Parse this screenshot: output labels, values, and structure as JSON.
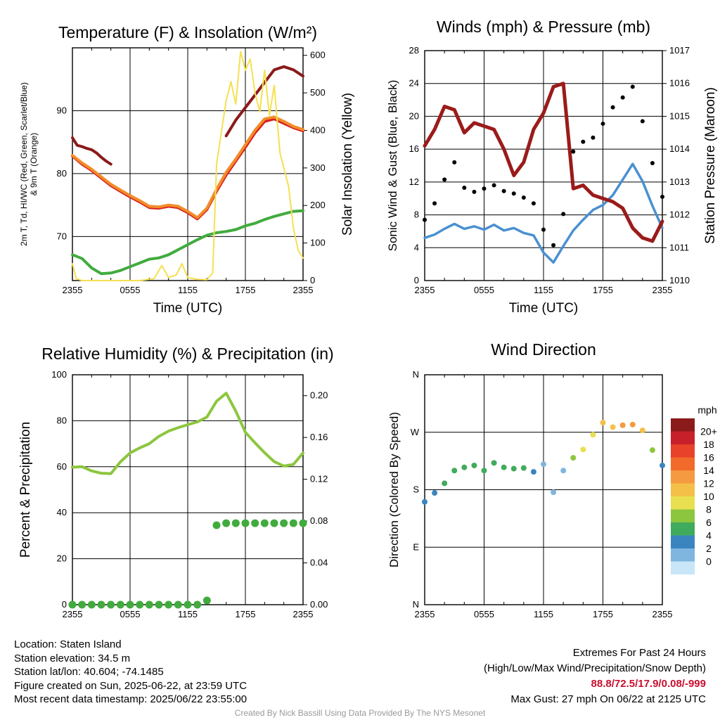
{
  "chart_data": [
    {
      "type": "line",
      "title": "Temperature (F) & Insolation (W/m²)",
      "xlabel": "Time (UTC)",
      "ylabel": "2m T, Td, HI/WC (Red, Green, Scarlet/Blue) & 9m T (Orange)",
      "ylabel2": "Solar Insolation (Yellow)",
      "x_ticks": [
        "2355",
        "0555",
        "1155",
        "1755",
        "2355"
      ],
      "ylim": [
        63,
        100
      ],
      "y_ticks": [
        70,
        80,
        90
      ],
      "y2lim": [
        0,
        620
      ],
      "y2_ticks": [
        0,
        100,
        200,
        300,
        400,
        500,
        600
      ],
      "grid": true,
      "x_hours": [
        0,
        1,
        2,
        3,
        4,
        5,
        6,
        7,
        8,
        9,
        10,
        11,
        12,
        13,
        14,
        15,
        16,
        17,
        18,
        19,
        20,
        21,
        22,
        23,
        24
      ],
      "series": [
        {
          "color": "#d62020",
          "values": [
            82.8,
            81.5,
            80.5,
            79.3,
            78.1,
            77.2,
            76.3,
            75.5,
            74.6,
            74.5,
            74.8,
            74.6,
            73.8,
            72.8,
            74.3,
            77.2,
            79.8,
            82.0,
            84.2,
            86.5,
            88.3,
            88.7,
            88.0,
            87.3,
            86.8
          ]
        },
        {
          "color": "#f28c28",
          "values": [
            82.9,
            81.7,
            80.7,
            79.5,
            78.3,
            77.4,
            76.5,
            75.7,
            74.8,
            74.7,
            75.0,
            74.8,
            74.0,
            73.0,
            74.5,
            77.5,
            80.2,
            82.3,
            84.6,
            86.9,
            88.7,
            89.0,
            88.3,
            87.5,
            87.0
          ]
        },
        {
          "color": "#41ab3d",
          "values": [
            67.1,
            66.5,
            65.0,
            64.1,
            64.2,
            64.6,
            65.2,
            65.8,
            66.4,
            66.6,
            67.1,
            67.9,
            68.7,
            69.5,
            70.2,
            70.6,
            70.8,
            71.1,
            71.7,
            72.1,
            72.7,
            73.2,
            73.6,
            74.0,
            74.1
          ]
        },
        {
          "color": "#8b1a1a",
          "hours": [
            0,
            0.5,
            1,
            1.5,
            2,
            2.5,
            3,
            3.5,
            4
          ],
          "values": [
            85.7,
            84.5,
            84.3,
            84.0,
            83.8,
            83.3,
            82.6,
            82.0,
            81.5
          ]
        },
        {
          "color": "#8b1a1a",
          "hours": [
            16,
            17,
            18,
            19,
            20,
            21,
            22,
            23,
            24
          ],
          "values": [
            86.0,
            88.5,
            90.5,
            92.5,
            94.5,
            96.5,
            97.0,
            96.5,
            95.5
          ]
        },
        {
          "color": "#f5e050",
          "axis": "right",
          "hours": [
            0,
            0.4,
            1,
            7,
            8.5,
            9.3,
            10,
            10.8,
            11.4,
            12,
            13,
            14,
            14.6,
            15,
            16,
            16.5,
            17,
            17.5,
            18,
            18.5,
            19,
            19.5,
            20,
            20.5,
            21,
            21.6,
            22,
            22.5,
            23,
            23.5,
            24
          ],
          "values": [
            45,
            5,
            0,
            0,
            5,
            40,
            8,
            15,
            45,
            8,
            3,
            2,
            20,
            310,
            480,
            530,
            470,
            610,
            560,
            590,
            500,
            450,
            560,
            440,
            520,
            340,
            300,
            250,
            140,
            80,
            60
          ]
        }
      ]
    },
    {
      "type": "line",
      "title": "Winds (mph) & Pressure (mb)",
      "xlabel": "Time (UTC)",
      "ylabel": "Sonic Wind & Gust (Blue, Black)",
      "ylabel2": "Station Pressure (Maroon)",
      "x_ticks": [
        "2355",
        "0555",
        "1155",
        "1755",
        "2355"
      ],
      "ylim": [
        0,
        28
      ],
      "y_ticks": [
        0,
        4,
        8,
        12,
        16,
        20,
        24,
        28
      ],
      "y2lim": [
        1010,
        1017
      ],
      "y2_ticks": [
        1010,
        1011,
        1012,
        1013,
        1014,
        1015,
        1016,
        1017
      ],
      "grid": true,
      "x_hours": [
        0,
        1,
        2,
        3,
        4,
        5,
        6,
        7,
        8,
        9,
        10,
        11,
        12,
        13,
        14,
        15,
        16,
        17,
        18,
        19,
        20,
        21,
        22,
        23,
        24
      ],
      "series": [
        {
          "color": "#4a90d0",
          "values": [
            5.2,
            5.6,
            6.3,
            6.9,
            6.3,
            6.6,
            6.2,
            6.8,
            6.1,
            6.4,
            5.8,
            5.5,
            3.4,
            2.2,
            4.2,
            6.1,
            7.4,
            8.6,
            9.2,
            10.4,
            12.3,
            14.2,
            12.1,
            9.1,
            6.4
          ]
        },
        {
          "color": "#000000",
          "type": "scatter",
          "values": [
            7.4,
            9.4,
            12.3,
            14.4,
            11.3,
            10.8,
            11.2,
            11.6,
            10.9,
            10.6,
            10.1,
            9.4,
            6.2,
            4.3,
            8.1,
            15.7,
            16.9,
            17.4,
            19.1,
            21.1,
            22.3,
            23.6,
            19.4,
            14.3,
            10.2
          ]
        },
        {
          "color": "#9b1b1b",
          "axis": "right",
          "values": [
            1014.1,
            1014.6,
            1015.3,
            1015.2,
            1014.5,
            1014.8,
            1014.7,
            1014.6,
            1014.0,
            1013.2,
            1013.6,
            1014.6,
            1015.1,
            1015.9,
            1016.0,
            1012.8,
            1012.9,
            1012.6,
            1012.5,
            1012.4,
            1012.2,
            1011.6,
            1011.3,
            1011.2,
            1011.8
          ]
        }
      ]
    },
    {
      "type": "line",
      "title": "Relative Humidity (%) & Precipitation (in)",
      "ylabel": "Percent & Precipitation",
      "x_ticks": [
        "2355",
        "0555",
        "1155",
        "1755",
        "2355"
      ],
      "ylim": [
        0,
        100
      ],
      "y_ticks": [
        0,
        20,
        40,
        60,
        80,
        100
      ],
      "y2lim": [
        0,
        0.22
      ],
      "y2_ticks": [
        "0.00",
        "0.04",
        "0.08",
        "0.12",
        "0.16",
        "0.20"
      ],
      "grid": true,
      "x_hours": [
        0,
        1,
        2,
        3,
        4,
        5,
        6,
        7,
        8,
        9,
        10,
        11,
        12,
        13,
        14,
        15,
        16,
        17,
        18,
        19,
        20,
        21,
        22,
        23,
        24
      ],
      "series": [
        {
          "color": "#8dc63f",
          "values": [
            59.8,
            60.0,
            58.2,
            57.2,
            57.0,
            62.1,
            66.0,
            68.2,
            70.0,
            73.2,
            75.5,
            77.0,
            78.3,
            79.5,
            81.6,
            88.5,
            92.0,
            84.2,
            75.0,
            70.4,
            66.1,
            62.2,
            60.3,
            61.0,
            66.0
          ]
        },
        {
          "color": "#41ab3d",
          "type": "scatter",
          "values": [
            0,
            0,
            0,
            0,
            0,
            0,
            0,
            0,
            0,
            0,
            0,
            0,
            0,
            0,
            0.004,
            0.076,
            0.078,
            0.078,
            0.078,
            0.078,
            0.078,
            0.078,
            0.078,
            0.078,
            0.078
          ]
        }
      ]
    },
    {
      "type": "scatter",
      "title": "Wind Direction",
      "ylabel": "Direction (Colored By Speed)",
      "x_ticks": [
        "2355",
        "0555",
        "1155",
        "1755",
        "2355"
      ],
      "ylim": [
        0,
        360
      ],
      "y_ticks": [
        "N",
        "E",
        "S",
        "W",
        "N"
      ],
      "grid": true,
      "legend_title": "mph",
      "legend": [
        "20+",
        "18",
        "16",
        "14",
        "12",
        "10",
        "8",
        "6",
        "4",
        "2",
        "0"
      ],
      "legend_colors": [
        "#8b1a1a",
        "#c8202a",
        "#e8422a",
        "#f26a2a",
        "#f59a40",
        "#f5c048",
        "#e8e050",
        "#8cc63f",
        "#41ab5d",
        "#3a85c0",
        "#7fb6e0",
        "#c8e6f8"
      ],
      "x_hours": [
        0,
        1,
        2,
        3,
        4,
        5,
        6,
        7,
        8,
        9,
        10,
        11,
        12,
        13,
        14,
        15,
        16,
        17,
        18,
        19,
        20,
        21,
        22,
        23,
        24
      ],
      "values": [
        161,
        175,
        190,
        210,
        215,
        218,
        210,
        222,
        215,
        213,
        214,
        208,
        220,
        176,
        210,
        230,
        243,
        266,
        285,
        278,
        281,
        282,
        273,
        242,
        218
      ],
      "speeds": [
        4,
        5,
        6,
        6,
        7,
        6,
        6,
        7,
        6,
        6,
        6,
        5,
        3,
        2,
        3,
        8,
        10,
        11,
        13,
        13,
        14,
        15,
        13,
        8,
        5
      ]
    }
  ],
  "info": {
    "location": "Location: Staten Island",
    "elevation": "Station elevation: 34.5 m",
    "latlon": "Station lat/lon: 40.604; -74.1485",
    "created": "Figure created on Sun, 2025-06-22, at 23:59 UTC",
    "recent": "Most recent data timestamp: 2025/06/22 23:55:00"
  },
  "extremes": {
    "title": "Extremes For Past 24 Hours",
    "subtitle": "(High/Low/Max Wind/Precipitation/Snow Depth)",
    "values": "88.8/72.5/17.9/0.08/-999",
    "gust": "Max Gust: 27 mph On 06/22 at 2125 UTC",
    "value_color": "#c8102e"
  },
  "credit": "Created By Nick Bassill Using Data Provided By The NYS Mesonet"
}
